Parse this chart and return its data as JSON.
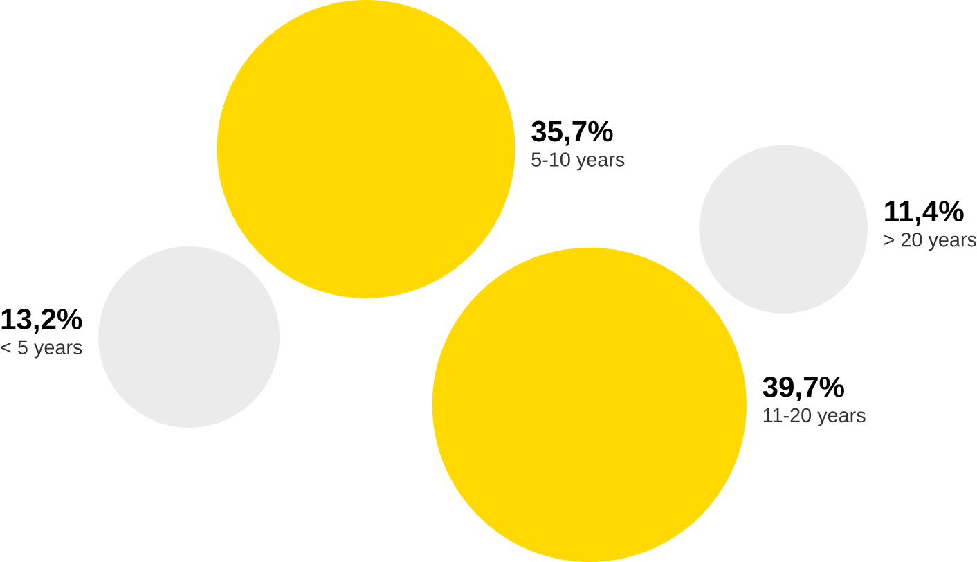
{
  "chart_data": {
    "type": "other",
    "categories": [
      "< 5 years",
      "5-10 years",
      "11-20 years",
      "> 20 years"
    ],
    "values": [
      13.2,
      35.7,
      39.7,
      11.4
    ],
    "value_labels": [
      "13,2%",
      "35,7%",
      "39,7%",
      "11,4%"
    ],
    "colors": [
      "#ebebeb",
      "#ffd900",
      "#ffd900",
      "#ebebeb"
    ]
  }
}
